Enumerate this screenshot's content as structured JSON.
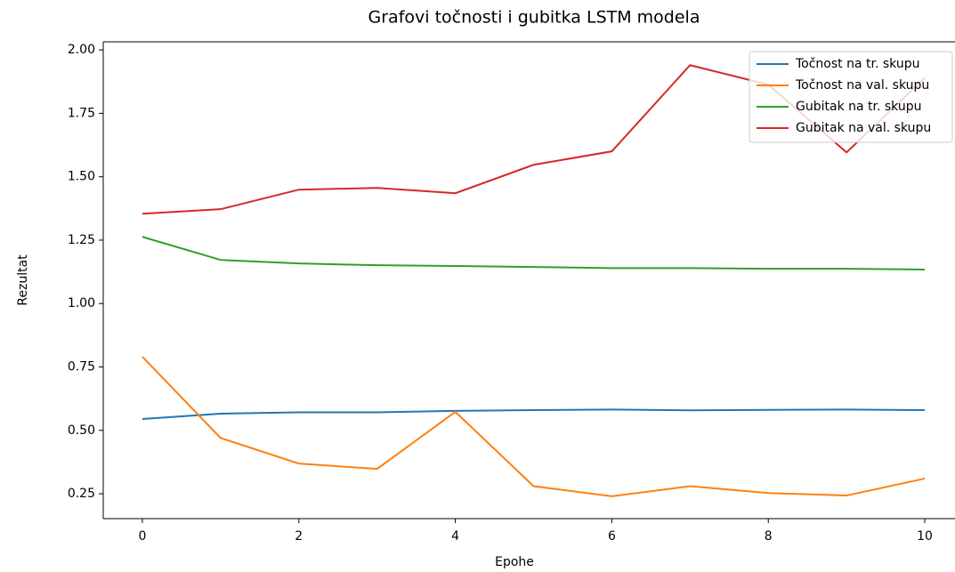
{
  "chart_data": {
    "type": "line",
    "title": "Grafovi točnosti i gubitka LSTM modela",
    "x_label": "Epohe",
    "y_label": "Rezultat",
    "x": [
      0,
      1,
      2,
      3,
      4,
      5,
      6,
      7,
      8,
      9,
      10
    ],
    "series": [
      {
        "name": "Točnost na tr. skupu",
        "color": "#1f77b4",
        "values": [
          0.545,
          0.566,
          0.571,
          0.571,
          0.577,
          0.58,
          0.582,
          0.579,
          0.581,
          0.582,
          0.58
        ]
      },
      {
        "name": "Točnost na val. skupu",
        "color": "#ff7f0e",
        "values": [
          0.79,
          0.47,
          0.369,
          0.348,
          0.573,
          0.28,
          0.24,
          0.28,
          0.253,
          0.243,
          0.31
        ]
      },
      {
        "name": "Gubitak na tr. skupu",
        "color": "#2ca02c",
        "values": [
          1.263,
          1.172,
          1.158,
          1.151,
          1.148,
          1.144,
          1.14,
          1.14,
          1.137,
          1.137,
          1.134
        ]
      },
      {
        "name": "Gubitak na val. skupu",
        "color": "#d62728",
        "values": [
          1.354,
          1.372,
          1.449,
          1.456,
          1.435,
          1.547,
          1.6,
          1.94,
          1.863,
          1.596,
          1.89
        ]
      }
    ],
    "xlim": [
      -0.5,
      10.5
    ],
    "xticks": [
      0,
      2,
      4,
      6,
      8,
      10
    ],
    "ylim": [
      0.152,
      2.032
    ],
    "yticks": [
      {
        "value": 0.25,
        "label": "0.25"
      },
      {
        "value": 0.5,
        "label": "0.50"
      },
      {
        "value": 0.75,
        "label": "0.75"
      },
      {
        "value": 1.0,
        "label": "1.00"
      },
      {
        "value": 1.25,
        "label": "1.25"
      },
      {
        "value": 1.5,
        "label": "1.50"
      },
      {
        "value": 1.75,
        "label": "1.75"
      },
      {
        "value": 2.0,
        "label": "2.00"
      }
    ],
    "legend": "upper right",
    "grid": false
  }
}
